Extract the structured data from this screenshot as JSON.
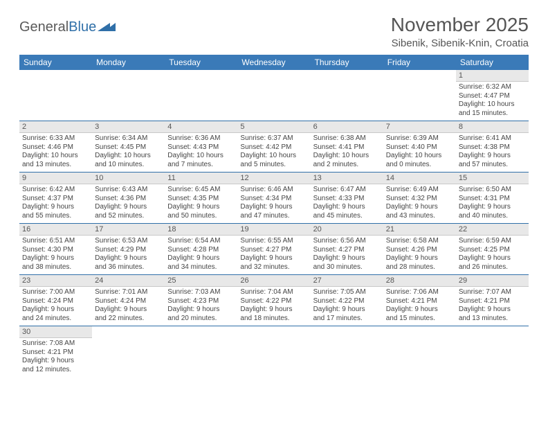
{
  "logo": {
    "general": "General",
    "blue": "Blue"
  },
  "header": {
    "month_title": "November 2025",
    "location": "Sibenik, Sibenik-Knin, Croatia"
  },
  "day_headers": [
    "Sunday",
    "Monday",
    "Tuesday",
    "Wednesday",
    "Thursday",
    "Friday",
    "Saturday"
  ],
  "colors": {
    "header_bg": "#3a7ab8",
    "header_text": "#ffffff",
    "daynum_bg": "#e8e8e8",
    "row_border": "#2f6fa8"
  },
  "weeks": [
    [
      {
        "empty": true
      },
      {
        "empty": true
      },
      {
        "empty": true
      },
      {
        "empty": true
      },
      {
        "empty": true
      },
      {
        "empty": true
      },
      {
        "day": "1",
        "sunrise": "Sunrise: 6:32 AM",
        "sunset": "Sunset: 4:47 PM",
        "daylight1": "Daylight: 10 hours",
        "daylight2": "and 15 minutes."
      }
    ],
    [
      {
        "day": "2",
        "sunrise": "Sunrise: 6:33 AM",
        "sunset": "Sunset: 4:46 PM",
        "daylight1": "Daylight: 10 hours",
        "daylight2": "and 13 minutes."
      },
      {
        "day": "3",
        "sunrise": "Sunrise: 6:34 AM",
        "sunset": "Sunset: 4:45 PM",
        "daylight1": "Daylight: 10 hours",
        "daylight2": "and 10 minutes."
      },
      {
        "day": "4",
        "sunrise": "Sunrise: 6:36 AM",
        "sunset": "Sunset: 4:43 PM",
        "daylight1": "Daylight: 10 hours",
        "daylight2": "and 7 minutes."
      },
      {
        "day": "5",
        "sunrise": "Sunrise: 6:37 AM",
        "sunset": "Sunset: 4:42 PM",
        "daylight1": "Daylight: 10 hours",
        "daylight2": "and 5 minutes."
      },
      {
        "day": "6",
        "sunrise": "Sunrise: 6:38 AM",
        "sunset": "Sunset: 4:41 PM",
        "daylight1": "Daylight: 10 hours",
        "daylight2": "and 2 minutes."
      },
      {
        "day": "7",
        "sunrise": "Sunrise: 6:39 AM",
        "sunset": "Sunset: 4:40 PM",
        "daylight1": "Daylight: 10 hours",
        "daylight2": "and 0 minutes."
      },
      {
        "day": "8",
        "sunrise": "Sunrise: 6:41 AM",
        "sunset": "Sunset: 4:38 PM",
        "daylight1": "Daylight: 9 hours",
        "daylight2": "and 57 minutes."
      }
    ],
    [
      {
        "day": "9",
        "sunrise": "Sunrise: 6:42 AM",
        "sunset": "Sunset: 4:37 PM",
        "daylight1": "Daylight: 9 hours",
        "daylight2": "and 55 minutes."
      },
      {
        "day": "10",
        "sunrise": "Sunrise: 6:43 AM",
        "sunset": "Sunset: 4:36 PM",
        "daylight1": "Daylight: 9 hours",
        "daylight2": "and 52 minutes."
      },
      {
        "day": "11",
        "sunrise": "Sunrise: 6:45 AM",
        "sunset": "Sunset: 4:35 PM",
        "daylight1": "Daylight: 9 hours",
        "daylight2": "and 50 minutes."
      },
      {
        "day": "12",
        "sunrise": "Sunrise: 6:46 AM",
        "sunset": "Sunset: 4:34 PM",
        "daylight1": "Daylight: 9 hours",
        "daylight2": "and 47 minutes."
      },
      {
        "day": "13",
        "sunrise": "Sunrise: 6:47 AM",
        "sunset": "Sunset: 4:33 PM",
        "daylight1": "Daylight: 9 hours",
        "daylight2": "and 45 minutes."
      },
      {
        "day": "14",
        "sunrise": "Sunrise: 6:49 AM",
        "sunset": "Sunset: 4:32 PM",
        "daylight1": "Daylight: 9 hours",
        "daylight2": "and 43 minutes."
      },
      {
        "day": "15",
        "sunrise": "Sunrise: 6:50 AM",
        "sunset": "Sunset: 4:31 PM",
        "daylight1": "Daylight: 9 hours",
        "daylight2": "and 40 minutes."
      }
    ],
    [
      {
        "day": "16",
        "sunrise": "Sunrise: 6:51 AM",
        "sunset": "Sunset: 4:30 PM",
        "daylight1": "Daylight: 9 hours",
        "daylight2": "and 38 minutes."
      },
      {
        "day": "17",
        "sunrise": "Sunrise: 6:53 AM",
        "sunset": "Sunset: 4:29 PM",
        "daylight1": "Daylight: 9 hours",
        "daylight2": "and 36 minutes."
      },
      {
        "day": "18",
        "sunrise": "Sunrise: 6:54 AM",
        "sunset": "Sunset: 4:28 PM",
        "daylight1": "Daylight: 9 hours",
        "daylight2": "and 34 minutes."
      },
      {
        "day": "19",
        "sunrise": "Sunrise: 6:55 AM",
        "sunset": "Sunset: 4:27 PM",
        "daylight1": "Daylight: 9 hours",
        "daylight2": "and 32 minutes."
      },
      {
        "day": "20",
        "sunrise": "Sunrise: 6:56 AM",
        "sunset": "Sunset: 4:27 PM",
        "daylight1": "Daylight: 9 hours",
        "daylight2": "and 30 minutes."
      },
      {
        "day": "21",
        "sunrise": "Sunrise: 6:58 AM",
        "sunset": "Sunset: 4:26 PM",
        "daylight1": "Daylight: 9 hours",
        "daylight2": "and 28 minutes."
      },
      {
        "day": "22",
        "sunrise": "Sunrise: 6:59 AM",
        "sunset": "Sunset: 4:25 PM",
        "daylight1": "Daylight: 9 hours",
        "daylight2": "and 26 minutes."
      }
    ],
    [
      {
        "day": "23",
        "sunrise": "Sunrise: 7:00 AM",
        "sunset": "Sunset: 4:24 PM",
        "daylight1": "Daylight: 9 hours",
        "daylight2": "and 24 minutes."
      },
      {
        "day": "24",
        "sunrise": "Sunrise: 7:01 AM",
        "sunset": "Sunset: 4:24 PM",
        "daylight1": "Daylight: 9 hours",
        "daylight2": "and 22 minutes."
      },
      {
        "day": "25",
        "sunrise": "Sunrise: 7:03 AM",
        "sunset": "Sunset: 4:23 PM",
        "daylight1": "Daylight: 9 hours",
        "daylight2": "and 20 minutes."
      },
      {
        "day": "26",
        "sunrise": "Sunrise: 7:04 AM",
        "sunset": "Sunset: 4:22 PM",
        "daylight1": "Daylight: 9 hours",
        "daylight2": "and 18 minutes."
      },
      {
        "day": "27",
        "sunrise": "Sunrise: 7:05 AM",
        "sunset": "Sunset: 4:22 PM",
        "daylight1": "Daylight: 9 hours",
        "daylight2": "and 17 minutes."
      },
      {
        "day": "28",
        "sunrise": "Sunrise: 7:06 AM",
        "sunset": "Sunset: 4:21 PM",
        "daylight1": "Daylight: 9 hours",
        "daylight2": "and 15 minutes."
      },
      {
        "day": "29",
        "sunrise": "Sunrise: 7:07 AM",
        "sunset": "Sunset: 4:21 PM",
        "daylight1": "Daylight: 9 hours",
        "daylight2": "and 13 minutes."
      }
    ],
    [
      {
        "day": "30",
        "sunrise": "Sunrise: 7:08 AM",
        "sunset": "Sunset: 4:21 PM",
        "daylight1": "Daylight: 9 hours",
        "daylight2": "and 12 minutes."
      },
      {
        "empty": true
      },
      {
        "empty": true
      },
      {
        "empty": true
      },
      {
        "empty": true
      },
      {
        "empty": true
      },
      {
        "empty": true
      }
    ]
  ]
}
